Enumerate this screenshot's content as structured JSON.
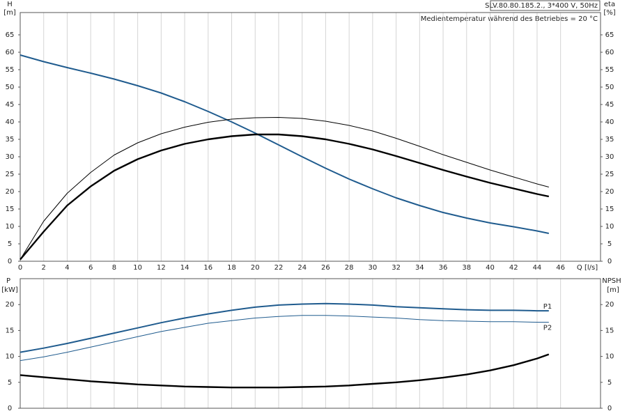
{
  "chart_data": [
    {
      "type": "line",
      "title": "SLV.80.80.185.2., 3*400 V, 50Hz",
      "subtitle": "Medientemperatur während des Betriebes = 20 °C",
      "y_label": "H",
      "y_unit": "[m]",
      "y2_label": "eta",
      "y2_unit": "[%]",
      "x_label": "Q [l/s]",
      "x": [
        0,
        2,
        4,
        6,
        8,
        10,
        12,
        14,
        16,
        18,
        20,
        22,
        24,
        26,
        28,
        30,
        32,
        34,
        36,
        38,
        40,
        42,
        44,
        45
      ],
      "xlim": [
        0,
        49.4
      ],
      "xticks": [
        0,
        2,
        4,
        6,
        8,
        10,
        12,
        14,
        16,
        18,
        20,
        22,
        24,
        26,
        28,
        30,
        32,
        34,
        36,
        38,
        40,
        42,
        44,
        46
      ],
      "ylim": [
        0,
        71.4
      ],
      "yticks": [
        0,
        5,
        10,
        15,
        20,
        25,
        30,
        35,
        40,
        45,
        50,
        55,
        60,
        65
      ],
      "y2lim": [
        0,
        71.4
      ],
      "y2ticks": [
        0,
        5,
        10,
        15,
        20,
        25,
        30,
        35,
        40,
        45,
        50,
        55,
        60,
        65
      ],
      "grid": "x",
      "series": [
        {
          "color": "#1f5b8e",
          "width": 2,
          "values": [
            59.2,
            57.3,
            55.6,
            54.0,
            52.3,
            50.4,
            48.3,
            45.8,
            43.0,
            40.0,
            36.8,
            33.4,
            30.0,
            26.7,
            23.6,
            20.8,
            18.2,
            16.0,
            14.0,
            12.4,
            11.0,
            9.9,
            8.7,
            8.0
          ]
        },
        {
          "color": "#000000",
          "width": 1,
          "axis": "y2",
          "values": [
            0.5,
            11.5,
            19.5,
            25.5,
            30.5,
            34,
            36.6,
            38.5,
            39.9,
            40.8,
            41.2,
            41.3,
            41,
            40.2,
            39,
            37.4,
            35.3,
            33,
            30.6,
            28.4,
            26.2,
            24.2,
            22.2,
            21.3
          ]
        },
        {
          "color": "#000000",
          "width": 2.4,
          "axis": "y2",
          "values": [
            0.5,
            8.5,
            16,
            21.5,
            26,
            29.3,
            31.8,
            33.7,
            35,
            35.9,
            36.4,
            36.4,
            35.9,
            35,
            33.7,
            32.1,
            30.2,
            28.2,
            26.2,
            24.3,
            22.5,
            20.9,
            19.3,
            18.6
          ]
        }
      ]
    },
    {
      "type": "line",
      "y_label": "P",
      "y_unit": "[kW]",
      "y2_label": "NPSH",
      "y2_unit": "[m]",
      "x": [
        0,
        2,
        4,
        6,
        8,
        10,
        12,
        14,
        16,
        18,
        20,
        22,
        24,
        26,
        28,
        30,
        32,
        34,
        36,
        38,
        40,
        42,
        44,
        45
      ],
      "xlim": [
        0,
        49.4
      ],
      "xticks": [
        0,
        2,
        4,
        6,
        8,
        10,
        12,
        14,
        16,
        18,
        20,
        22,
        24,
        26,
        28,
        30,
        32,
        34,
        36,
        38,
        40,
        42,
        44,
        46
      ],
      "ylim": [
        0,
        25
      ],
      "yticks": [
        0,
        5,
        10,
        15,
        20
      ],
      "y2lim": [
        0,
        25
      ],
      "y2ticks": [
        0,
        5,
        10,
        15,
        20
      ],
      "grid": "x",
      "series": [
        {
          "name": "P1",
          "color": "#1f5b8e",
          "width": 2,
          "values": [
            10.8,
            11.6,
            12.5,
            13.5,
            14.5,
            15.5,
            16.5,
            17.4,
            18.2,
            18.9,
            19.5,
            19.9,
            20.1,
            20.2,
            20.1,
            19.9,
            19.6,
            19.4,
            19.2,
            19.0,
            18.9,
            18.9,
            18.8,
            18.8
          ]
        },
        {
          "name": "P2",
          "color": "#1f5b8e",
          "width": 1,
          "values": [
            9.2,
            9.9,
            10.8,
            11.8,
            12.8,
            13.8,
            14.8,
            15.6,
            16.4,
            16.9,
            17.4,
            17.7,
            17.9,
            17.9,
            17.8,
            17.6,
            17.4,
            17.1,
            16.9,
            16.8,
            16.7,
            16.7,
            16.6,
            16.6
          ]
        },
        {
          "color": "#000000",
          "width": 2.4,
          "axis": "y2",
          "values": [
            6.4,
            6.0,
            5.6,
            5.2,
            4.9,
            4.6,
            4.4,
            4.2,
            4.1,
            4.0,
            4.0,
            4.0,
            4.1,
            4.2,
            4.4,
            4.7,
            5.0,
            5.4,
            5.9,
            6.5,
            7.3,
            8.3,
            9.6,
            10.4
          ]
        }
      ]
    }
  ]
}
